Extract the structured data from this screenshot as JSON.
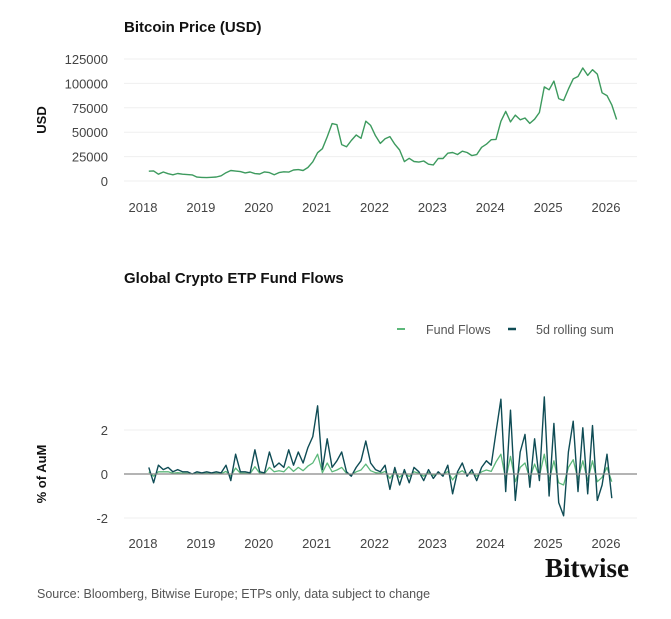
{
  "chart_data": [
    {
      "type": "line",
      "title": "Bitcoin Price (USD)",
      "ylabel": "USD",
      "xlabel": "",
      "ylim": [
        0,
        125000
      ],
      "yticks": [
        "0",
        "25000",
        "50000",
        "75000",
        "100000",
        "125000"
      ],
      "xticks": [
        "2018",
        "2019",
        "2020",
        "2021",
        "2022",
        "2023",
        "2024",
        "2025",
        "2026"
      ],
      "grid": true,
      "x_start": 2018.1,
      "x_step_months": 1,
      "series": [
        {
          "color": "#3d9a5e",
          "values": [
            10000,
            10300,
            7000,
            9200,
            7500,
            6400,
            7700,
            7000,
            6600,
            6300,
            4000,
            3700,
            3450,
            3800,
            4100,
            5300,
            8500,
            10800,
            10100,
            9600,
            8300,
            9200,
            7600,
            7200,
            9350,
            8600,
            6400,
            8600,
            9450,
            9140,
            11300,
            11650,
            10800,
            13800,
            19700,
            29000,
            33100,
            45200,
            58800,
            57700,
            37300,
            35000,
            41500,
            47100,
            43800,
            61300,
            57000,
            46300,
            38500,
            43200,
            45500,
            37700,
            31800,
            19900,
            23300,
            20000,
            19400,
            20500,
            17200,
            16500,
            23100,
            23100,
            28500,
            29200,
            27200,
            30500,
            29200,
            26000,
            27000,
            34500,
            37700,
            42300,
            42600,
            61200,
            71300,
            60600,
            67500,
            62700,
            64600,
            59000,
            63300,
            70200,
            96400,
            93400,
            102400,
            84400,
            82500,
            94200,
            104600,
            107100,
            115800,
            108200,
            114000,
            109500,
            90400,
            87500,
            78000,
            63000
          ]
        }
      ]
    },
    {
      "type": "line",
      "title": "Global Crypto ETP Fund Flows",
      "ylabel": "% of AuM",
      "xlabel": "",
      "ylim": [
        -2.5,
        3.5
      ],
      "yticks": [
        "-2",
        "0",
        "2"
      ],
      "xticks": [
        "2018",
        "2019",
        "2020",
        "2021",
        "2022",
        "2023",
        "2024",
        "2025",
        "2026"
      ],
      "grid": true,
      "legend": "top-right",
      "x_start": 2018.1,
      "x_step_months": 1,
      "series": [
        {
          "name": "Fund Flows",
          "color": "#5cb87a",
          "values": [
            0.1,
            -0.1,
            0.1,
            0.1,
            0.1,
            0.03,
            0.06,
            0.03,
            0.03,
            0,
            0.03,
            0.02,
            0.03,
            0.02,
            0.03,
            0.02,
            0.12,
            -0.1,
            0.27,
            0.03,
            0.03,
            0.02,
            0.33,
            0.03,
            0.02,
            0.3,
            0.1,
            0.15,
            0.1,
            0.33,
            0.12,
            0.3,
            0.15,
            0.36,
            0.5,
            0.9,
            0.06,
            0.5,
            0.1,
            0.18,
            0.3,
            0.03,
            -0.03,
            0.1,
            0.18,
            0.45,
            0.15,
            0.06,
            0.03,
            0.12,
            -0.2,
            0.1,
            -0.15,
            0.06,
            -0.12,
            0.1,
            0.03,
            -0.1,
            0.06,
            -0.06,
            0.03,
            -0.03,
            0.12,
            -0.27,
            0.03,
            0.15,
            -0.03,
            0.06,
            -0.1,
            0.1,
            0.18,
            0.12,
            0.55,
            0.9,
            -0.25,
            0.8,
            -0.35,
            0.3,
            0.5,
            -0.2,
            0.45,
            -0.1,
            0.9,
            -0.3,
            0.6,
            -0.4,
            -0.5,
            0.3,
            0.65,
            -0.25,
            0.6,
            -0.3,
            0.6,
            -0.35,
            -0.15,
            0.3,
            -0.35
          ]
        },
        {
          "name": "5d rolling sum",
          "color": "#0f4c55",
          "values": [
            0.3,
            -0.4,
            0.4,
            0.2,
            0.3,
            0.1,
            0.2,
            0.1,
            0.1,
            0.0,
            0.1,
            0.05,
            0.1,
            0.05,
            0.1,
            0.05,
            0.4,
            -0.3,
            0.9,
            0.1,
            0.1,
            0.05,
            1.1,
            0.1,
            0.05,
            1.0,
            0.3,
            0.5,
            0.3,
            1.1,
            0.4,
            1.0,
            0.5,
            1.2,
            1.7,
            3.1,
            0.2,
            1.6,
            0.3,
            0.6,
            1.0,
            0.1,
            -0.1,
            0.3,
            0.6,
            1.5,
            0.5,
            0.2,
            0.1,
            0.4,
            -0.7,
            0.3,
            -0.5,
            0.2,
            -0.4,
            0.3,
            0.1,
            -0.3,
            0.2,
            -0.2,
            0.1,
            -0.1,
            0.4,
            -0.9,
            0.1,
            0.5,
            -0.1,
            0.2,
            -0.3,
            0.3,
            0.6,
            0.4,
            1.9,
            3.4,
            -0.8,
            2.9,
            -1.2,
            1.0,
            1.8,
            -0.6,
            1.6,
            -0.3,
            3.5,
            -1.0,
            2.3,
            -1.3,
            -1.9,
            1.0,
            2.4,
            -0.8,
            2.1,
            -0.9,
            2.2,
            -1.2,
            -0.5,
            0.9,
            -1.1
          ]
        }
      ]
    }
  ],
  "logo": "Bitwise",
  "source": "Source: Bloomberg, Bitwise Europe; ETPs only, data subject to change"
}
